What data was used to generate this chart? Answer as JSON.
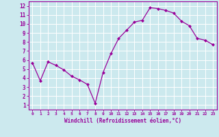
{
  "x": [
    0,
    1,
    2,
    3,
    4,
    5,
    6,
    7,
    8,
    9,
    10,
    11,
    12,
    13,
    14,
    15,
    16,
    17,
    18,
    19,
    20,
    21,
    22,
    23
  ],
  "y": [
    5.7,
    3.7,
    5.8,
    5.4,
    4.9,
    4.2,
    3.8,
    3.3,
    1.2,
    4.6,
    6.7,
    8.4,
    9.3,
    10.2,
    10.4,
    11.8,
    11.7,
    11.5,
    11.2,
    10.3,
    9.8,
    8.4,
    8.2,
    7.7
  ],
  "line_color": "#990099",
  "marker": "D",
  "marker_size": 2,
  "bg_color": "#cce9ee",
  "grid_color": "#ffffff",
  "xlabel": "Windchill (Refroidissement éolien,°C)",
  "xlabel_color": "#990099",
  "tick_color": "#990099",
  "spine_color": "#990099",
  "ylim": [
    0.5,
    12.5
  ],
  "xlim": [
    -0.5,
    23.5
  ],
  "yticks": [
    1,
    2,
    3,
    4,
    5,
    6,
    7,
    8,
    9,
    10,
    11,
    12
  ],
  "xticks": [
    0,
    1,
    2,
    3,
    4,
    5,
    6,
    7,
    8,
    9,
    10,
    11,
    12,
    13,
    14,
    15,
    16,
    17,
    18,
    19,
    20,
    21,
    22,
    23
  ],
  "xlabel_fontsize": 5.5,
  "tick_fontsize_x": 4.5,
  "tick_fontsize_y": 5.5
}
